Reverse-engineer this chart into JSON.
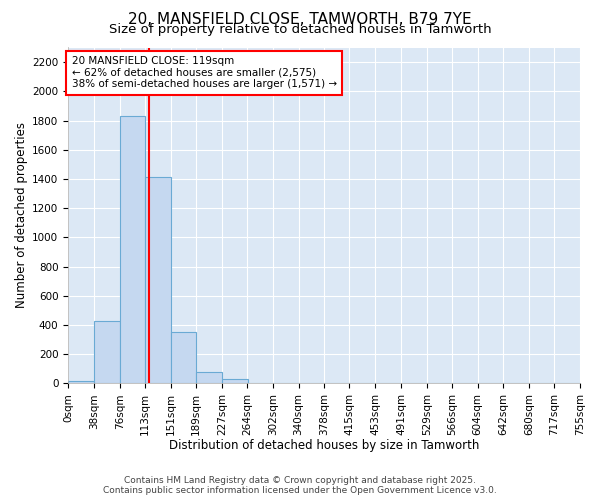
{
  "title": "20, MANSFIELD CLOSE, TAMWORTH, B79 7YE",
  "subtitle": "Size of property relative to detached houses in Tamworth",
  "xlabel": "Distribution of detached houses by size in Tamworth",
  "ylabel": "Number of detached properties",
  "footer_line1": "Contains HM Land Registry data © Crown copyright and database right 2025.",
  "footer_line2": "Contains public sector information licensed under the Open Government Licence v3.0.",
  "bin_edges": [
    0,
    38,
    76,
    113,
    151,
    189,
    227,
    264,
    302,
    340,
    378,
    415,
    453,
    491,
    529,
    566,
    604,
    642,
    680,
    717,
    755
  ],
  "bin_labels": [
    "0sqm",
    "38sqm",
    "76sqm",
    "113sqm",
    "151sqm",
    "189sqm",
    "227sqm",
    "264sqm",
    "302sqm",
    "340sqm",
    "378sqm",
    "415sqm",
    "453sqm",
    "491sqm",
    "529sqm",
    "566sqm",
    "604sqm",
    "642sqm",
    "680sqm",
    "717sqm",
    "755sqm"
  ],
  "bar_values": [
    15,
    425,
    1830,
    1415,
    355,
    80,
    30,
    5,
    0,
    0,
    0,
    0,
    0,
    0,
    0,
    0,
    0,
    0,
    0,
    0
  ],
  "bar_color": "#c5d8f0",
  "bar_edge_color": "#6aaad4",
  "property_size": 119,
  "red_line_x": 119,
  "annotation_line1": "20 MANSFIELD CLOSE: 119sqm",
  "annotation_line2": "← 62% of detached houses are smaller (2,575)",
  "annotation_line3": "38% of semi-detached houses are larger (1,571) →",
  "annotation_box_color": "white",
  "annotation_box_edge_color": "red",
  "red_line_color": "red",
  "ylim": [
    0,
    2300
  ],
  "yticks": [
    0,
    200,
    400,
    600,
    800,
    1000,
    1200,
    1400,
    1600,
    1800,
    2000,
    2200
  ],
  "xlim": [
    0,
    755
  ],
  "background_color": "#ffffff",
  "plot_bg_color": "#dce8f5",
  "grid_color": "#ffffff",
  "title_fontsize": 11,
  "subtitle_fontsize": 9.5,
  "axis_label_fontsize": 8.5,
  "tick_fontsize": 7.5,
  "footer_fontsize": 6.5,
  "annot_fontsize": 7.5
}
